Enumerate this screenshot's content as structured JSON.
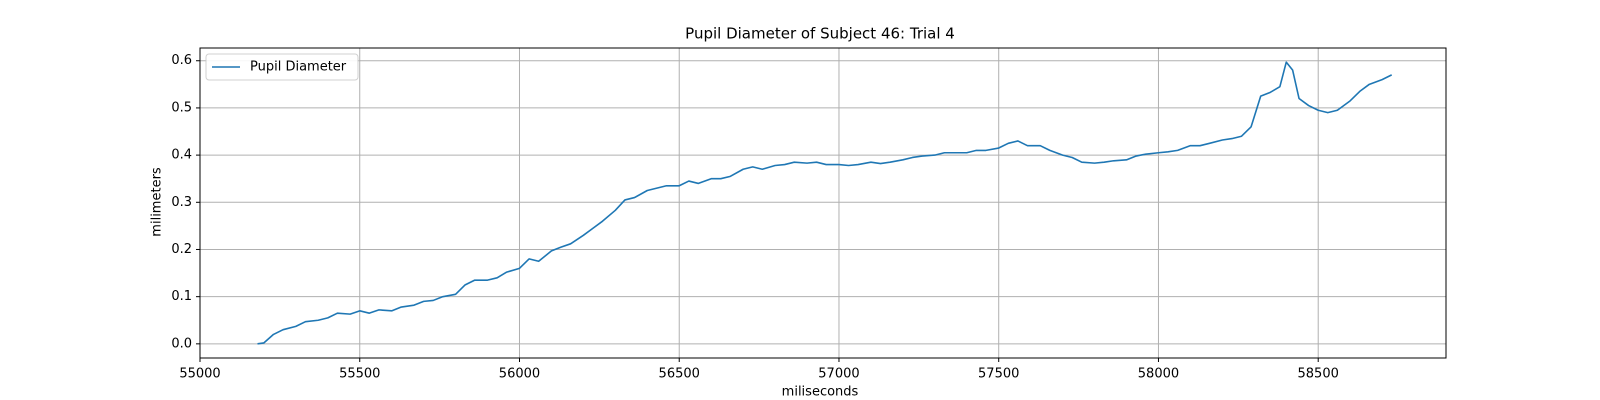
{
  "chart_data": {
    "type": "line",
    "title": "Pupil Diameter of Subject 46: Trial 4",
    "x_label": "miliseconds",
    "y_label": "milimeters",
    "x": [
      55180,
      55200,
      55230,
      55260,
      55300,
      55330,
      55370,
      55400,
      55430,
      55470,
      55500,
      55530,
      55560,
      55600,
      55630,
      55670,
      55700,
      55730,
      55760,
      55800,
      55830,
      55860,
      55900,
      55930,
      55960,
      56000,
      56030,
      56060,
      56100,
      56130,
      56160,
      56200,
      56230,
      56260,
      56300,
      56330,
      56360,
      56400,
      56430,
      56460,
      56500,
      56530,
      56560,
      56600,
      56630,
      56660,
      56700,
      56730,
      56760,
      56800,
      56830,
      56860,
      56900,
      56930,
      56960,
      57000,
      57030,
      57060,
      57100,
      57130,
      57160,
      57200,
      57230,
      57260,
      57300,
      57330,
      57360,
      57400,
      57430,
      57460,
      57500,
      57530,
      57560,
      57590,
      57630,
      57660,
      57700,
      57730,
      57760,
      57800,
      57830,
      57860,
      57900,
      57930,
      57960,
      58000,
      58030,
      58060,
      58100,
      58130,
      58160,
      58200,
      58230,
      58260,
      58290,
      58320,
      58350,
      58380,
      58400,
      58420,
      58440,
      58470,
      58500,
      58530,
      58560,
      58600,
      58630,
      58660,
      58700,
      58730
    ],
    "series": [
      {
        "name": "Pupil Diameter",
        "color": "#1f77b4",
        "values": [
          0.0,
          0.002,
          0.02,
          0.03,
          0.037,
          0.047,
          0.05,
          0.055,
          0.065,
          0.063,
          0.07,
          0.065,
          0.072,
          0.07,
          0.078,
          0.082,
          0.09,
          0.092,
          0.1,
          0.105,
          0.125,
          0.135,
          0.135,
          0.14,
          0.152,
          0.16,
          0.18,
          0.175,
          0.197,
          0.205,
          0.212,
          0.23,
          0.245,
          0.26,
          0.283,
          0.305,
          0.31,
          0.325,
          0.33,
          0.335,
          0.335,
          0.345,
          0.34,
          0.35,
          0.35,
          0.355,
          0.37,
          0.375,
          0.37,
          0.378,
          0.38,
          0.385,
          0.383,
          0.385,
          0.38,
          0.38,
          0.378,
          0.38,
          0.385,
          0.382,
          0.385,
          0.39,
          0.395,
          0.398,
          0.4,
          0.405,
          0.405,
          0.405,
          0.41,
          0.41,
          0.415,
          0.425,
          0.43,
          0.42,
          0.42,
          0.41,
          0.4,
          0.395,
          0.385,
          0.383,
          0.385,
          0.388,
          0.39,
          0.398,
          0.402,
          0.405,
          0.407,
          0.41,
          0.42,
          0.42,
          0.425,
          0.432,
          0.435,
          0.44,
          0.46,
          0.525,
          0.533,
          0.545,
          0.597,
          0.58,
          0.52,
          0.505,
          0.495,
          0.49,
          0.495,
          0.515,
          0.535,
          0.55,
          0.56,
          0.57
        ]
      }
    ],
    "xlim": [
      55000,
      58900
    ],
    "ylim": [
      -0.03,
      0.627
    ],
    "xticks": [
      55000,
      55500,
      56000,
      56500,
      57000,
      57500,
      58000,
      58500
    ],
    "yticks": [
      {
        "value": 0,
        "label": "0.0"
      },
      0.1,
      0.2,
      0.3,
      0.4,
      0.5,
      0.6
    ],
    "grid": true,
    "legend": "upper left"
  }
}
